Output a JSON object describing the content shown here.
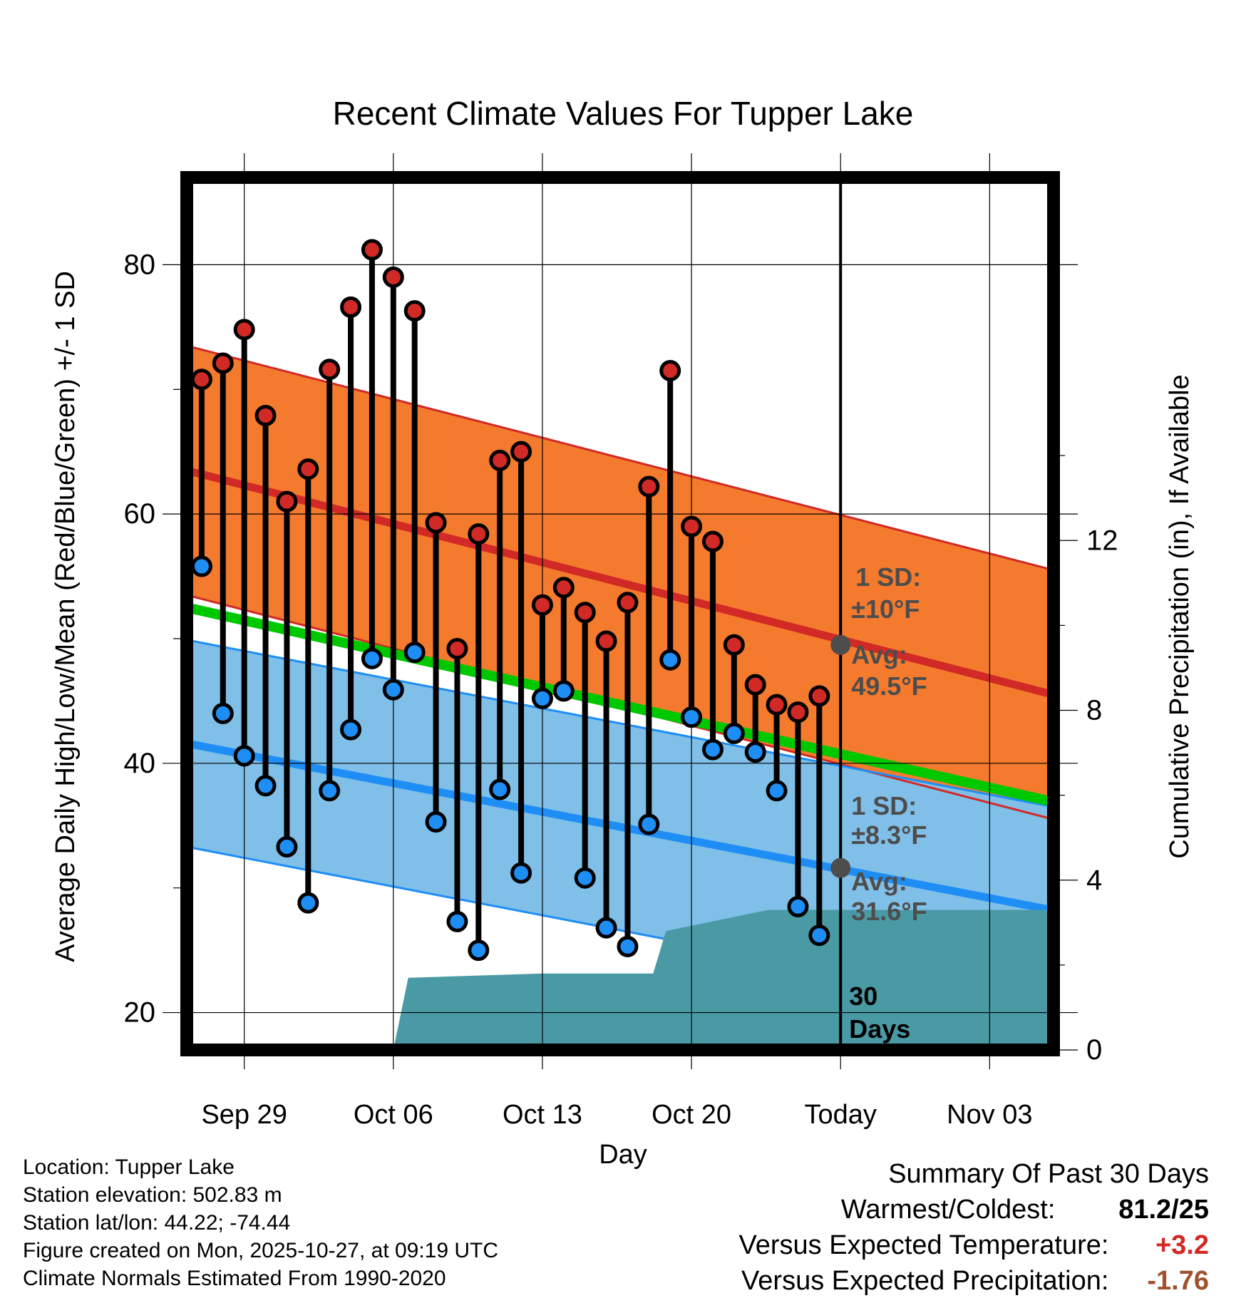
{
  "chart_data": {
    "type": "line",
    "title": "Recent Climate Values For Tupper Lake",
    "xlabel": "Day",
    "ylabel": "Average Daily High/Low/Mean (Red/Blue/Green) +/- 1 SD",
    "ylabel_right": "Cumulative Precipitation (in), If Available",
    "x_tick_labels": [
      "Sep 29",
      "Oct 06",
      "Oct 13",
      "Oct 20",
      "Today",
      "Nov 03"
    ],
    "x_tick_days": [
      0,
      7,
      14,
      21,
      28,
      35
    ],
    "xlim": [
      -2.7,
      38.0
    ],
    "y_ticks": [
      20,
      40,
      60,
      80
    ],
    "ylim": [
      17.0,
      87.0
    ],
    "y2_ticks": [
      0,
      4,
      8,
      12
    ],
    "y2lim": [
      0,
      20.55
    ],
    "today_day": 28,
    "today_marker_label": "30 Days",
    "days": [
      -2,
      -1,
      0,
      1,
      2,
      3,
      4,
      5,
      6,
      7,
      8,
      9,
      10,
      11,
      12,
      13,
      14,
      15,
      16,
      17,
      18,
      19,
      20,
      21,
      22,
      23,
      24,
      25,
      26,
      27
    ],
    "highs": [
      70.8,
      72.1,
      74.8,
      67.9,
      61.0,
      63.6,
      71.6,
      76.6,
      81.2,
      79.0,
      76.3,
      59.3,
      49.2,
      58.4,
      64.3,
      65.0,
      52.7,
      54.1,
      52.1,
      49.8,
      52.9,
      62.2,
      71.5,
      59.0,
      57.8,
      49.5,
      46.3,
      44.7,
      44.1,
      45.4
    ],
    "lows": [
      55.8,
      44.0,
      40.6,
      38.2,
      33.3,
      28.8,
      37.8,
      42.7,
      48.4,
      45.9,
      48.9,
      35.3,
      27.3,
      25.0,
      37.9,
      31.2,
      45.2,
      45.8,
      30.8,
      26.8,
      25.3,
      35.1,
      48.3,
      43.7,
      41.1,
      42.4,
      40.9,
      37.8,
      28.5,
      26.2
    ],
    "normal_high_start": 63.5,
    "normal_high_end": 45.5,
    "normal_high_sd": 10,
    "normal_low_start": 41.6,
    "normal_low_end": 28.2,
    "normal_low_sd": 8.3,
    "normal_mean_start": 52.5,
    "normal_mean_end": 36.9,
    "precip_days": [
      7,
      7.7,
      14,
      19.2,
      19.8,
      24.6,
      38
    ],
    "precip_values": [
      0,
      1.7,
      1.8,
      1.8,
      2.8,
      3.3,
      3.3
    ],
    "annotation_high_sd": "1 SD:",
    "annotation_high_sd_value": "±10°F",
    "annotation_high_avg": "Avg:",
    "annotation_high_avg_value": "49.5°F",
    "annotation_low_sd": "1 SD:",
    "annotation_low_sd_value": "±8.3°F",
    "annotation_low_avg": "Avg:",
    "annotation_low_avg_value": "31.6°F",
    "avg_high_today": 49.5,
    "avg_low_today": 31.6
  },
  "colors": {
    "high_band": "#f47a2e",
    "high_line": "#d12a26",
    "low_band": "#80bfe8",
    "low_line": "#1e8ef5",
    "mean_line": "#00c800",
    "precip": "#4a9aa5",
    "annotation": "#4d4d4d",
    "positive": "#d12a26",
    "negative": "#a0522d"
  },
  "footer": {
    "location": "Location: Tupper Lake",
    "elevation": "Station elevation: 502.83 m",
    "latlon": "Station lat/lon: 44.22; -74.44",
    "created": "Figure created on Mon, 2025-10-27, at 09:19 UTC",
    "normals": "Climate Normals Estimated From 1990-2020"
  },
  "summary": {
    "title": "Summary Of Past 30 Days",
    "warm_cold_label": "Warmest/Coldest:",
    "warm_cold_value": "81.2/25",
    "temp_label": "Versus Expected Temperature:",
    "temp_value": "+3.2",
    "precip_label": "Versus Expected Precipitation:",
    "precip_value": "-1.76"
  }
}
